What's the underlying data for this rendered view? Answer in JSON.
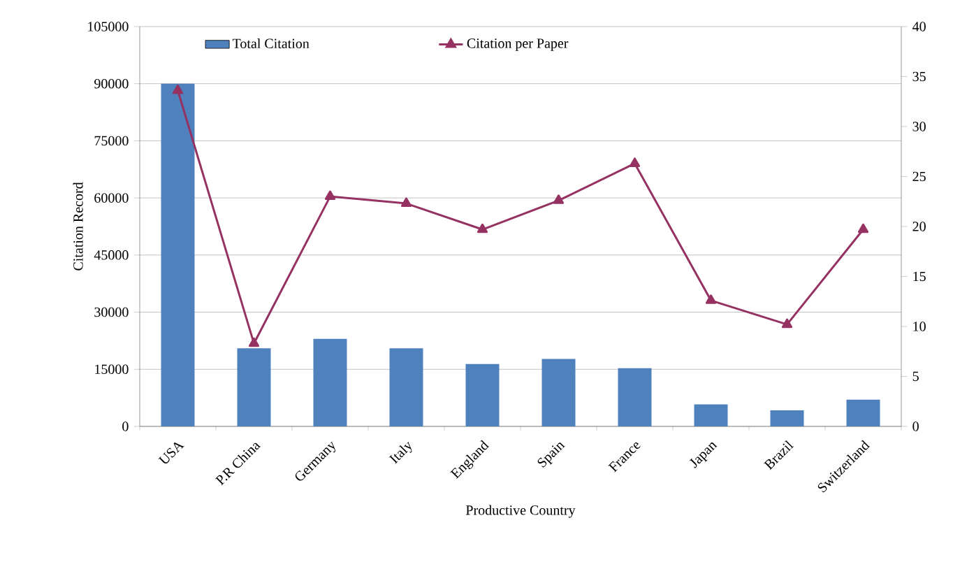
{
  "chart_data": {
    "type": "bar",
    "xlabel": "Productive Country",
    "ylabel": "Citation Record",
    "categories": [
      "USA",
      "P.R China",
      "Germany",
      "Italy",
      "England",
      "Spain",
      "France",
      "Japan",
      "Brazil",
      "Switzerland"
    ],
    "series": [
      {
        "name": "Total Citation",
        "color": "#4f81bd",
        "values": [
          90000,
          20500,
          23000,
          20500,
          16400,
          17700,
          15300,
          5800,
          4200,
          7000
        ]
      },
      {
        "name": "Citation per Paper",
        "type": "line",
        "axis": "y2",
        "color": "#953262",
        "marker": "triangle",
        "values": [
          33.6,
          8.3,
          23.0,
          22.3,
          19.7,
          22.6,
          26.3,
          12.6,
          10.2,
          19.7
        ]
      }
    ],
    "ylim": [
      0,
      105000
    ],
    "yticks": [
      0,
      15000,
      30000,
      45000,
      60000,
      75000,
      90000,
      105000
    ],
    "y2lim": [
      0,
      40
    ],
    "y2ticks": [
      0,
      5,
      10,
      15,
      20,
      25,
      30,
      35,
      40
    ],
    "grid": "y",
    "legend": "top"
  }
}
